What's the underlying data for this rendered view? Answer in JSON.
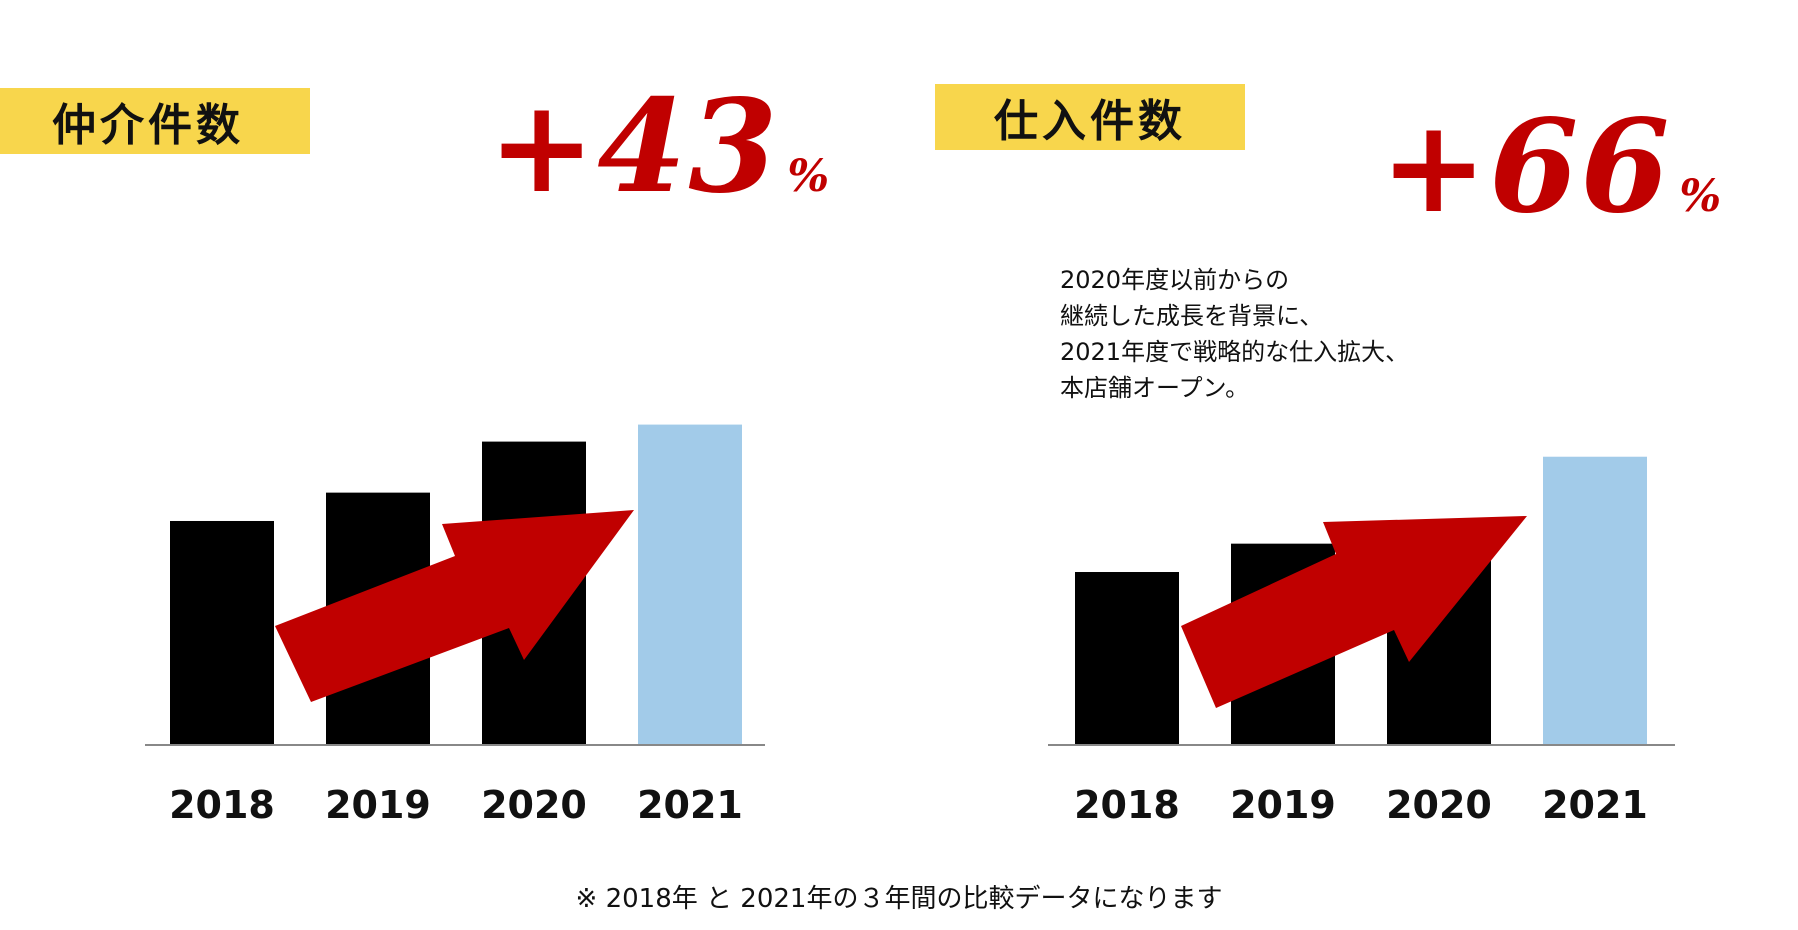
{
  "chart_data": [
    {
      "type": "bar",
      "title": "仲介件数",
      "growth_label": "+43",
      "growth_unit": "%",
      "categories": [
        "2018",
        "2019",
        "2020",
        "2021"
      ],
      "values": [
        59,
        66.5,
        80,
        84.5
      ],
      "ylim": [
        0,
        100
      ],
      "bar_colors": [
        "#000000",
        "#000000",
        "#000000",
        "#a2cbe9"
      ],
      "arrow_color": "#c00000",
      "xlabel": "",
      "ylabel": ""
    },
    {
      "type": "bar",
      "title": "仕入件数",
      "growth_label": "+66",
      "growth_unit": "%",
      "categories": [
        "2018",
        "2019",
        "2020",
        "2021"
      ],
      "values": [
        45.5,
        53,
        53.5,
        76
      ],
      "ylim": [
        0,
        100
      ],
      "bar_colors": [
        "#000000",
        "#000000",
        "#000000",
        "#a2cbe9"
      ],
      "arrow_color": "#c00000",
      "annotation": [
        "2020年度以前からの",
        "継続した成長を背景に、",
        "2021年度で戦略的な仕入拡大、",
        "本店舗オープン。"
      ],
      "xlabel": "",
      "ylabel": ""
    }
  ],
  "footnote": "※ 2018年 と 2021年の３年間の比較データになります",
  "colors": {
    "title_bg": "#f8d64c",
    "accent_red": "#c00000",
    "axis": "#888888"
  }
}
